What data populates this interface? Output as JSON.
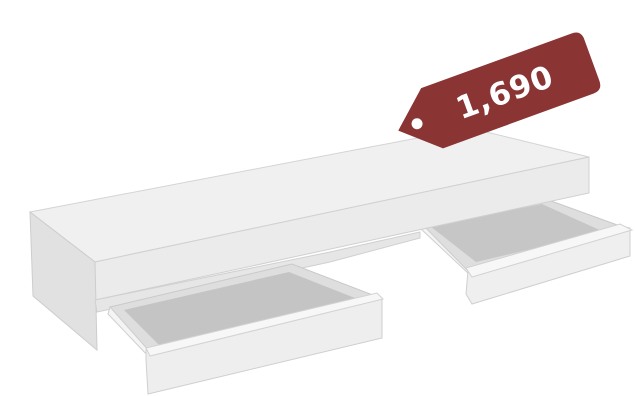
{
  "price_tag": {
    "text": "1,690",
    "color": "#8b3434"
  },
  "product": {
    "icon": "floating-shelf-with-two-drawers",
    "color": "#ececec"
  }
}
